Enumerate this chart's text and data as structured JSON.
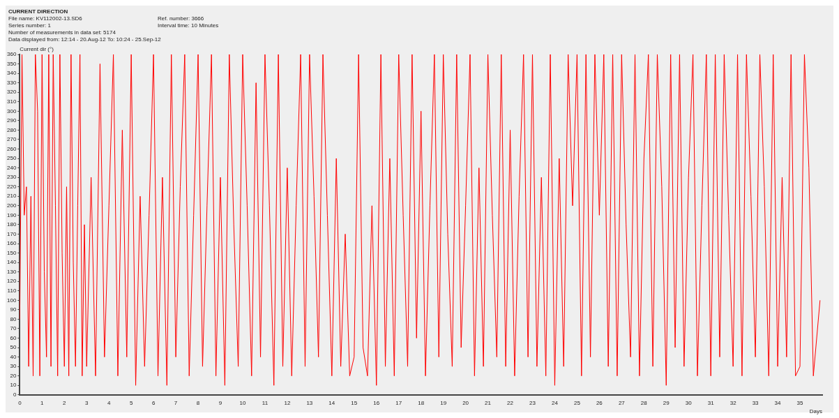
{
  "chart_data": {
    "type": "line",
    "title": "CURRENT DIRECTION",
    "annotations": [
      "File name: KV112002-13.SD6",
      "Ref. number: 3666",
      "Series number: 1",
      "Interval time: 10 Minutes",
      "Number of measurements in data set: 5174",
      "Data displayed from: 12:14 - 20.Aug-12    To: 10:24 - 25.Sep-12"
    ],
    "xlabel": "Days",
    "ylabel": "Current dir (°)",
    "x": [
      0,
      0.1,
      0.2,
      0.3,
      0.4,
      0.5,
      0.6,
      0.7,
      0.8,
      0.9,
      1,
      1.1,
      1.2,
      1.3,
      1.4,
      1.5,
      1.6,
      1.7,
      1.8,
      1.9,
      2,
      2.1,
      2.2,
      2.3,
      2.4,
      2.5,
      2.6,
      2.7,
      2.8,
      2.9,
      3,
      3.2,
      3.4,
      3.6,
      3.8,
      4,
      4.2,
      4.4,
      4.6,
      4.8,
      5,
      5.2,
      5.4,
      5.6,
      5.8,
      6,
      6.2,
      6.4,
      6.6,
      6.8,
      7,
      7.2,
      7.4,
      7.6,
      7.8,
      8,
      8.2,
      8.4,
      8.6,
      8.8,
      9,
      9.2,
      9.4,
      9.6,
      9.8,
      10,
      10.2,
      10.4,
      10.6,
      10.8,
      11,
      11.2,
      11.4,
      11.6,
      11.8,
      12,
      12.2,
      12.4,
      12.6,
      12.8,
      13,
      13.2,
      13.4,
      13.6,
      13.8,
      14,
      14.2,
      14.4,
      14.6,
      14.8,
      15,
      15.2,
      15.4,
      15.6,
      15.8,
      16,
      16.2,
      16.4,
      16.6,
      16.8,
      17,
      17.2,
      17.4,
      17.6,
      17.8,
      18,
      18.2,
      18.4,
      18.6,
      18.8,
      19,
      19.2,
      19.4,
      19.6,
      19.8,
      20,
      20.2,
      20.4,
      20.6,
      20.8,
      21,
      21.2,
      21.4,
      21.6,
      21.8,
      22,
      22.2,
      22.4,
      22.6,
      22.8,
      23,
      23.2,
      23.4,
      23.6,
      23.8,
      24,
      24.2,
      24.4,
      24.6,
      24.8,
      25,
      25.2,
      25.4,
      25.6,
      25.8,
      26,
      26.2,
      26.4,
      26.6,
      26.8,
      27,
      27.2,
      27.4,
      27.6,
      27.8,
      28,
      28.2,
      28.4,
      28.6,
      28.8,
      29,
      29.2,
      29.4,
      29.6,
      29.8,
      30,
      30.2,
      30.4,
      30.6,
      30.8,
      31,
      31.2,
      31.4,
      31.6,
      31.8,
      32,
      32.2,
      32.4,
      32.6,
      32.8,
      33,
      33.2,
      33.4,
      33.6,
      33.8,
      34,
      34.2,
      34.4,
      34.6,
      34.8,
      35,
      35.2,
      35.4,
      35.6,
      35.9
    ],
    "series": [
      {
        "color": "#ff0000",
        "values": [
          80,
          360,
          190,
          220,
          30,
          210,
          20,
          360,
          300,
          20,
          360,
          130,
          40,
          360,
          30,
          360,
          200,
          20,
          360,
          150,
          30,
          220,
          20,
          360,
          140,
          30,
          200,
          360,
          20,
          180,
          30,
          230,
          20,
          350,
          40,
          200,
          360,
          20,
          280,
          40,
          360,
          10,
          210,
          30,
          190,
          360,
          20,
          230,
          10,
          360,
          40,
          220,
          360,
          20,
          190,
          360,
          30,
          200,
          360,
          20,
          230,
          10,
          360,
          180,
          30,
          360,
          200,
          20,
          330,
          40,
          360,
          200,
          10,
          360,
          30,
          240,
          20,
          200,
          360,
          30,
          360,
          210,
          40,
          360,
          190,
          20,
          250,
          30,
          170,
          20,
          40,
          360,
          50,
          20,
          200,
          10,
          360,
          30,
          250,
          20,
          360,
          190,
          30,
          360,
          60,
          300,
          20,
          200,
          360,
          40,
          360,
          170,
          30,
          360,
          50,
          200,
          360,
          20,
          240,
          30,
          360,
          190,
          40,
          360,
          30,
          280,
          20,
          210,
          360,
          40,
          360,
          30,
          230,
          20,
          360,
          10,
          250,
          30,
          360,
          200,
          360,
          20,
          360,
          40,
          360,
          190,
          360,
          30,
          360,
          20,
          360,
          180,
          40,
          360,
          20,
          250,
          360,
          30,
          360,
          220,
          10,
          360,
          50,
          360,
          30,
          230,
          360,
          20,
          200,
          360,
          20,
          360,
          40,
          360,
          190,
          30,
          360,
          20,
          360,
          210,
          40,
          360,
          220,
          20,
          360,
          30,
          230,
          40,
          360,
          20,
          30,
          360,
          240,
          20,
          100
        ]
      }
    ],
    "xlim": [
      0,
      36
    ],
    "xticks": [
      0,
      1,
      2,
      3,
      4,
      5,
      6,
      7,
      8,
      9,
      10,
      11,
      12,
      13,
      14,
      15,
      16,
      17,
      18,
      19,
      20,
      21,
      22,
      23,
      24,
      25,
      26,
      27,
      28,
      29,
      30,
      31,
      32,
      33,
      34,
      35
    ],
    "ylim": [
      0,
      360
    ],
    "yticks": [
      0,
      10,
      20,
      30,
      40,
      50,
      60,
      70,
      80,
      90,
      100,
      110,
      120,
      130,
      140,
      150,
      160,
      170,
      180,
      190,
      200,
      210,
      220,
      230,
      240,
      250,
      260,
      270,
      280,
      290,
      300,
      310,
      320,
      330,
      340,
      350,
      360
    ],
    "grid": false,
    "legend": false,
    "marker": "none",
    "line_style": "solid"
  }
}
